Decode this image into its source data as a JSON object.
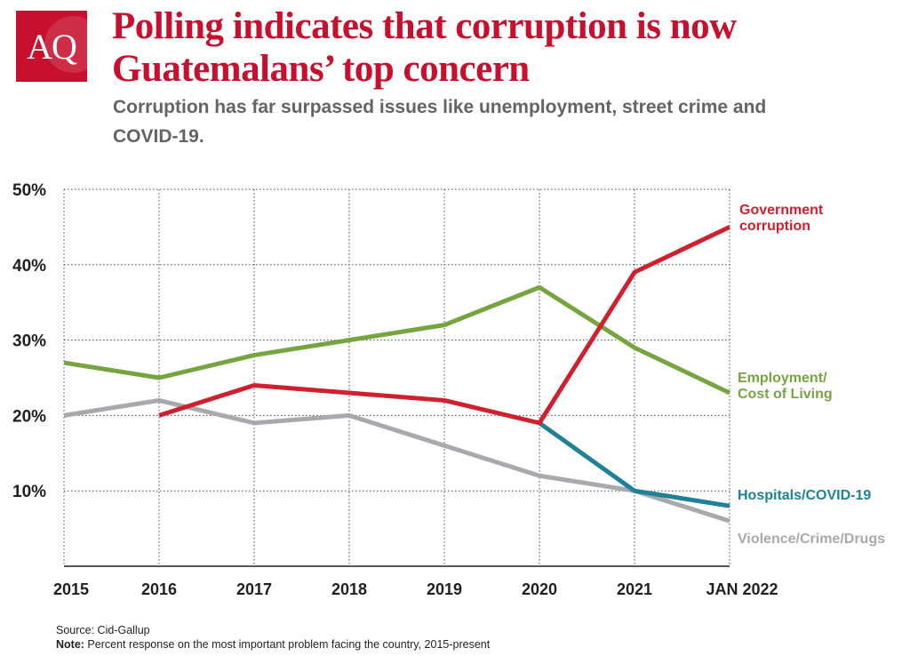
{
  "logo": {
    "text": "AQ",
    "color": "#c8102e"
  },
  "header": {
    "title": "Polling indicates that corruption is now Guatemalans’ top concern",
    "subtitle": "Corruption has far surpassed issues like unemployment, street crime and COVID-19."
  },
  "footer": {
    "source": "Source: Cid-Gallup",
    "note_label": "Note:",
    "note_text": " Percent response on the most important problem facing the country, 2015-present"
  },
  "chart_data": {
    "type": "line",
    "categories": [
      "2015",
      "2016",
      "2017",
      "2018",
      "2019",
      "2020",
      "2021",
      "JAN 2022"
    ],
    "yticks": [
      "50%",
      "40%",
      "30%",
      "20%",
      "10%"
    ],
    "ylim": [
      0,
      50
    ],
    "grid": true,
    "grid_style": "dotted",
    "legend": "inline-right",
    "series": [
      {
        "name_lines": [
          "Employment/",
          "Cost of Living"
        ],
        "color": "#76a540",
        "values": [
          27,
          25,
          28,
          30,
          32,
          37,
          29,
          23
        ]
      },
      {
        "name_lines": [
          "Violence/Crime/Drugs"
        ],
        "color": "#a7a9ac",
        "values": [
          20,
          22,
          19,
          20,
          16,
          12,
          10,
          6
        ]
      },
      {
        "name_lines": [
          "Hospitals/COVID-19"
        ],
        "color": "#1f8196",
        "values": [
          null,
          null,
          null,
          null,
          null,
          19,
          10,
          8
        ]
      },
      {
        "name_lines": [
          "Government",
          "corruption"
        ],
        "color": "#d0202e",
        "values": [
          null,
          20,
          24,
          23,
          22,
          19,
          39,
          45
        ]
      }
    ]
  }
}
